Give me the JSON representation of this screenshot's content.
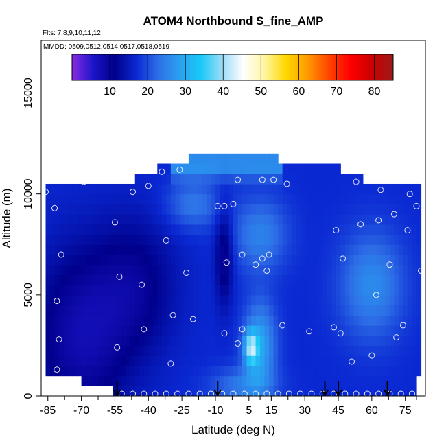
{
  "chart_data": {
    "type": "heatmap",
    "title": "ATOM4 Northbound S_fine_AMP",
    "annotations": [
      "Flts: 7,8,9,10,11,12",
      "MMDD: 0509,0512,0514,0517,0518,0519"
    ],
    "xlabel": "Latitude (deg N)",
    "ylabel": "Altitude (m)",
    "xlim": [
      -88,
      84
    ],
    "ylim": [
      0,
      17600
    ],
    "x_ticks": [
      -85,
      -70,
      -55,
      -40,
      -25,
      -10,
      5,
      15,
      30,
      45,
      60,
      75
    ],
    "x_minor_ticks": [
      -77.5,
      -62.5,
      -47.5,
      -32.5,
      -17.5,
      -2.5,
      10,
      22.5,
      37.5,
      52.5,
      67.5,
      80
    ],
    "y_ticks": [
      0,
      5000,
      10000,
      15000
    ],
    "colorbar": {
      "ticks": [
        10,
        20,
        30,
        40,
        50,
        60,
        70,
        80
      ],
      "range": [
        0,
        85
      ],
      "colors": [
        "#8a2be2",
        "#1a14c8",
        "#00008b",
        "#0a28d2",
        "#2d6de6",
        "#2aa0f0",
        "#18c8f8",
        "#9adcf8",
        "#ffffff",
        "#fff5a0",
        "#ffd800",
        "#ff9a00",
        "#ff4400",
        "#ff0000",
        "#cc0000",
        "#9b1a1a"
      ]
    },
    "field_extent": {
      "lat_range": [
        -86,
        82
      ],
      "alt_range": [
        0,
        12000
      ]
    },
    "profile_markers_lat": [
      -54,
      -9,
      39,
      45,
      67
    ],
    "sample_points": [
      [
        -86,
        10100
      ],
      [
        -82,
        9300
      ],
      [
        -79,
        7000
      ],
      [
        -81,
        4700
      ],
      [
        -80,
        2800
      ],
      [
        -81,
        1300
      ],
      [
        -69,
        10600
      ],
      [
        -55,
        8600
      ],
      [
        -53,
        5900
      ],
      [
        -54,
        2400
      ],
      [
        -47,
        10100
      ],
      [
        -43,
        5500
      ],
      [
        -42,
        3300
      ],
      [
        -40,
        10400
      ],
      [
        -34,
        11100
      ],
      [
        -32,
        7700
      ],
      [
        -29,
        4000
      ],
      [
        -30,
        1600
      ],
      [
        -26,
        11200
      ],
      [
        -23,
        6100
      ],
      [
        -20,
        3800
      ],
      [
        -9,
        9400
      ],
      [
        -6,
        9400
      ],
      [
        -6,
        3100
      ],
      [
        -5,
        6600
      ],
      [
        -2,
        9500
      ],
      [
        0,
        10700
      ],
      [
        0,
        2600
      ],
      [
        2,
        3300
      ],
      [
        8,
        6500
      ],
      [
        11,
        10700
      ],
      [
        11,
        6800
      ],
      [
        13,
        6200
      ],
      [
        14,
        7000
      ],
      [
        16,
        10700
      ],
      [
        20,
        3500
      ],
      [
        22,
        10500
      ],
      [
        32,
        3200
      ],
      [
        43,
        3400
      ],
      [
        44,
        8200
      ],
      [
        46,
        3100
      ],
      [
        47,
        6800
      ],
      [
        51,
        1700
      ],
      [
        53,
        10600
      ],
      [
        54,
        11200
      ],
      [
        55,
        8500
      ],
      [
        60,
        2000
      ],
      [
        62,
        5000
      ],
      [
        63,
        8700
      ],
      [
        67,
        10800
      ],
      [
        68,
        6500
      ],
      [
        71,
        2900
      ],
      [
        71,
        10800
      ],
      [
        74,
        3500
      ],
      [
        76,
        8200
      ],
      [
        77,
        10000
      ],
      [
        80,
        9400
      ],
      [
        82,
        6200
      ],
      [
        70,
        9000
      ],
      [
        64,
        10200
      ],
      [
        2,
        7000
      ]
    ]
  }
}
